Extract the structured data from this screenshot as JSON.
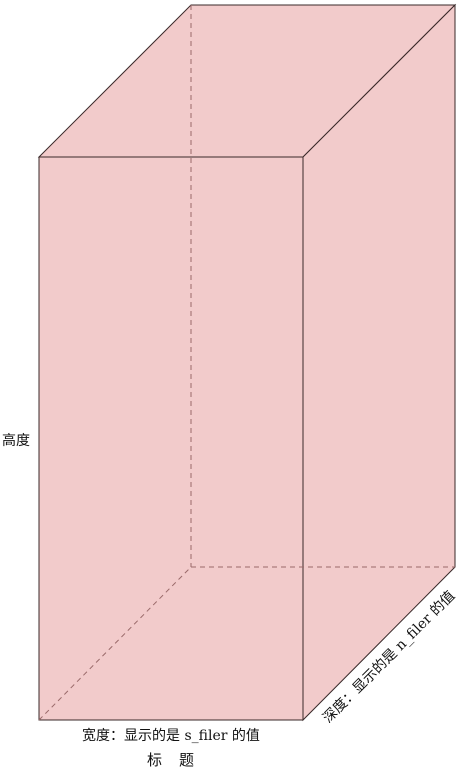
{
  "labels": {
    "height": "高度",
    "width": "宽度：显示的是 s_filer 的值",
    "depth": "深度：显示的是 n_filer 的值",
    "title": "标　题"
  },
  "colors": {
    "fill": "#f2cbcb",
    "edge": "#3a2a2a",
    "hidden_edge": "#9a6a6a"
  }
}
